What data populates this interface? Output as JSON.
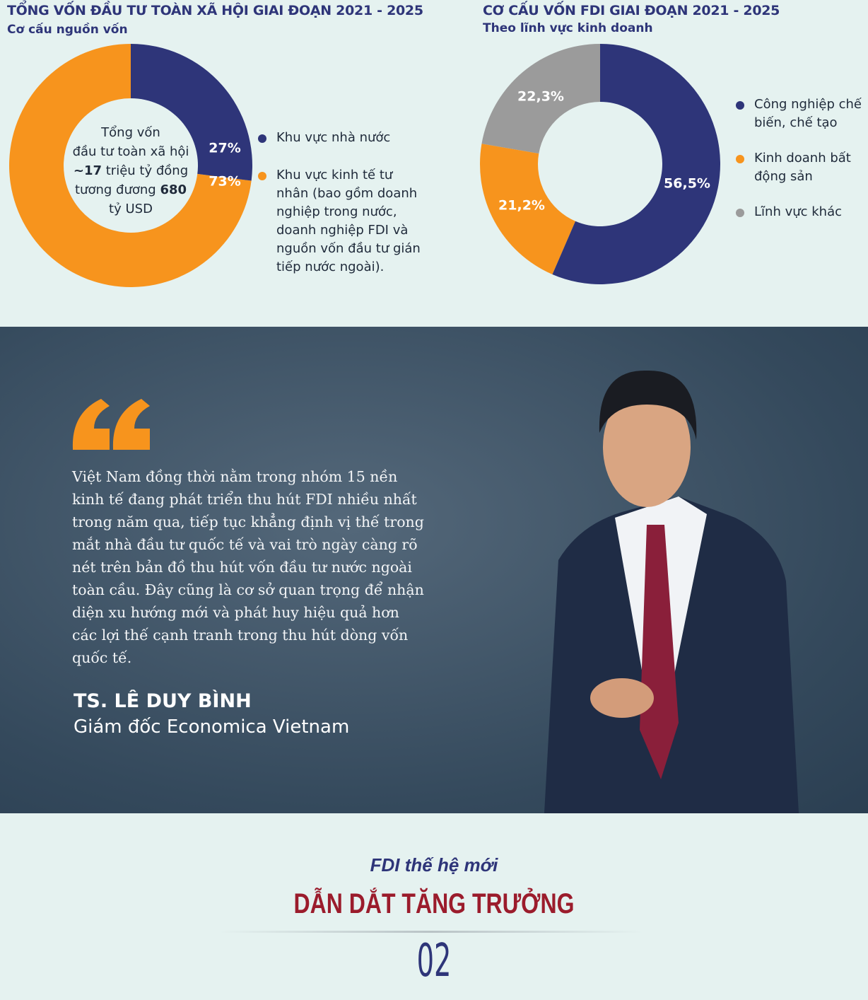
{
  "chart_data": [
    {
      "type": "pie",
      "title": "TỔNG VỐN ĐẦU TƯ TOÀN XÃ HỘI GIAI ĐOẠN 2021 - 2025",
      "subtitle": "Cơ cấu nguồn vốn",
      "categories": [
        "Khu vực nhà nước",
        "Khu vực kinh tế tư nhân (bao gồm doanh nghiệp trong nước, doanh nghiệp FDI và nguồn vốn đầu tư gián tiếp nước ngoài)."
      ],
      "values": [
        27,
        73
      ],
      "value_labels": [
        "27%",
        "73%"
      ],
      "colors": [
        "#2e3579",
        "#f7941d"
      ],
      "center_label": {
        "line1": "Tổng vốn",
        "line2": "đầu tư toàn xã hội",
        "amount": "~17",
        "amount_unit": "triệu tỷ đồng",
        "equivalent": "tương đương",
        "usd": "680",
        "usd_unit": "tỷ USD"
      }
    },
    {
      "type": "pie",
      "title": "CƠ CẤU VỐN FDI GIAI ĐOẠN 2021 - 2025",
      "subtitle": "Theo lĩnh vực kinh doanh",
      "categories": [
        "Công nghiệp chế biến, chế tạo",
        "Kinh doanh bất động sản",
        "Lĩnh vực khác"
      ],
      "values": [
        56.5,
        21.2,
        22.3
      ],
      "value_labels": [
        "56,5%",
        "21,2%",
        "22,3%"
      ],
      "colors": [
        "#2e3579",
        "#f7941d",
        "#9b9b9b"
      ]
    }
  ],
  "quote": {
    "text": "Việt Nam đồng thời nằm trong nhóm 15 nền kinh tế đang phát triển thu hút FDI nhiều nhất trong năm qua, tiếp tục khẳng định vị thế trong mắt nhà đầu tư quốc tế và vai trò ngày càng rõ nét trên bản đồ thu hút vốn đầu tư nước ngoài toàn cầu. Đây cũng là cơ sở quan trọng để nhận diện xu hướng mới và phát huy hiệu quả hơn các lợi thế cạnh tranh trong thu hút dòng vốn quốc tế.",
    "author": "TS. LÊ DUY BÌNH",
    "role": "Giám đốc Economica Vietnam"
  },
  "footer": {
    "kicker": "FDI thế hệ mới",
    "title": "DẪN DẮT TĂNG TRƯỞNG",
    "number": "02"
  }
}
